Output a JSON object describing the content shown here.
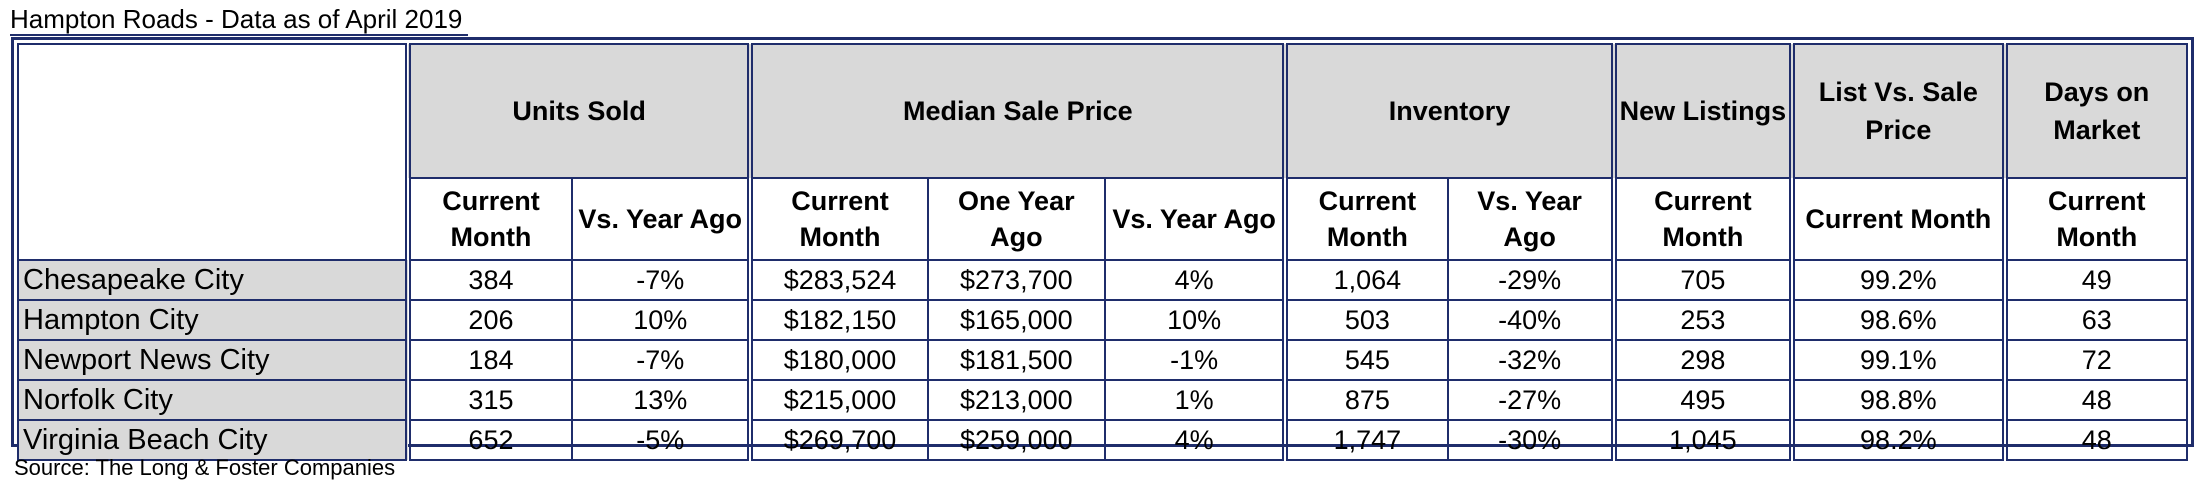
{
  "title": "Hampton Roads - Data as of April 2019",
  "headers": {
    "units_sold": "Units Sold",
    "median_sale_price": "Median Sale Price",
    "inventory": "Inventory",
    "new_listings": "New Listings",
    "list_vs_sale": "List Vs. Sale Price",
    "days_on_market": "Days on Market"
  },
  "subheaders": {
    "current_month": "Current Month",
    "vs_year_ago": "Vs. Year Ago",
    "one_year_ago": "One Year Ago"
  },
  "rows": [
    {
      "city": "Chesapeake City",
      "units": "384",
      "units_vs": "-7%",
      "price": "$283,524",
      "price_prev": "$273,700",
      "price_vs": "4%",
      "inv": "1,064",
      "inv_vs": "-29%",
      "new": "705",
      "lvs": "99.2%",
      "dom": "49"
    },
    {
      "city": "Hampton City",
      "units": "206",
      "units_vs": "10%",
      "price": "$182,150",
      "price_prev": "$165,000",
      "price_vs": "10%",
      "inv": "503",
      "inv_vs": "-40%",
      "new": "253",
      "lvs": "98.6%",
      "dom": "63"
    },
    {
      "city": "Newport News City",
      "units": "184",
      "units_vs": "-7%",
      "price": "$180,000",
      "price_prev": "$181,500",
      "price_vs": "-1%",
      "inv": "545",
      "inv_vs": "-32%",
      "new": "298",
      "lvs": "99.1%",
      "dom": "72"
    },
    {
      "city": "Norfolk City",
      "units": "315",
      "units_vs": "13%",
      "price": "$215,000",
      "price_prev": "$213,000",
      "price_vs": "1%",
      "inv": "875",
      "inv_vs": "-27%",
      "new": "495",
      "lvs": "98.8%",
      "dom": "48"
    },
    {
      "city": "Virginia Beach City",
      "units": "652",
      "units_vs": "-5%",
      "price": "$269,700",
      "price_prev": "$259,000",
      "price_vs": "4%",
      "inv": "1,747",
      "inv_vs": "-30%",
      "new": "1,045",
      "lvs": "98.2%",
      "dom": "48"
    }
  ],
  "source": "Source: The Long & Foster Companies",
  "colors": {
    "border": "#1f2d6b",
    "header_fill": "#d9d9d9"
  }
}
